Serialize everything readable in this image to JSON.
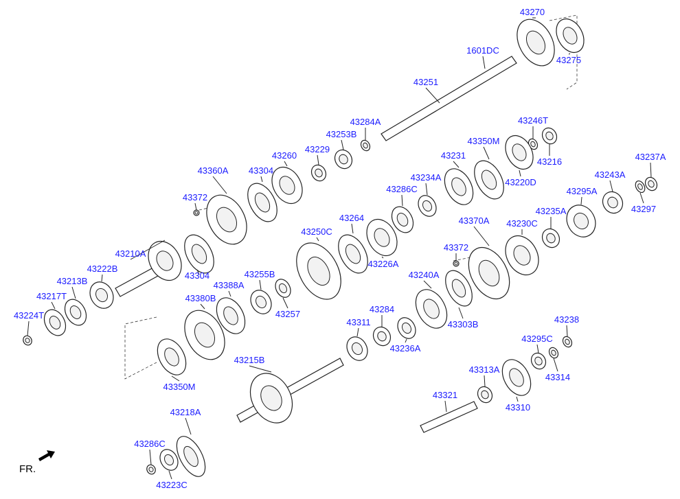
{
  "diagram": {
    "parts": [
      "43270",
      "43275",
      "1601DC",
      "43251",
      "43284A",
      "43253B",
      "43229",
      "43260",
      "43304",
      "43360A",
      "43372",
      "43246T",
      "43216",
      "43350M",
      "43231",
      "43220D",
      "43234A",
      "43286C",
      "43237A",
      "43243A",
      "43295A",
      "43297",
      "43264",
      "43226A",
      "43250C",
      "43370A",
      "43372",
      "43230C",
      "43235A",
      "43210A",
      "43304",
      "43222B",
      "43255B",
      "43388A",
      "43213B",
      "43217T",
      "43380B",
      "43224T",
      "43257",
      "43240A",
      "43303B",
      "43284",
      "43311",
      "43236A",
      "43238",
      "43295C",
      "43314",
      "43313A",
      "43350M",
      "43215B",
      "43321",
      "43310",
      "43218A",
      "43286C",
      "43223C"
    ],
    "direction_label": "FR.",
    "label_color": "#1a1aff"
  }
}
